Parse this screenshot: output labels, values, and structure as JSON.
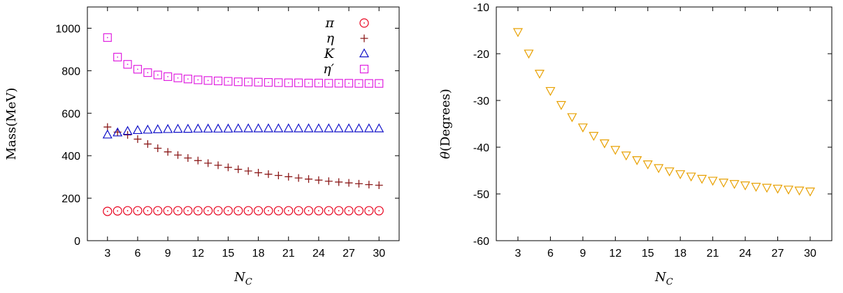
{
  "chart_data": [
    {
      "type": "scatter",
      "xlabel": "N_C",
      "ylabel": "Mass(MeV)",
      "xlim": [
        1,
        32
      ],
      "ylim": [
        0,
        1100
      ],
      "xticks": [
        3,
        6,
        9,
        12,
        15,
        18,
        21,
        24,
        27,
        30
      ],
      "yticks": [
        0,
        200,
        400,
        600,
        800,
        1000
      ],
      "legend_position": "top-right",
      "x": [
        3,
        4,
        5,
        6,
        7,
        8,
        9,
        10,
        11,
        12,
        13,
        14,
        15,
        16,
        17,
        18,
        19,
        20,
        21,
        22,
        23,
        24,
        25,
        26,
        27,
        28,
        29,
        30
      ],
      "series": [
        {
          "name": "π",
          "marker": "circle",
          "color": "#e8001c",
          "values": [
            138,
            140,
            141,
            141,
            141,
            141,
            141,
            141,
            141,
            141,
            141,
            141,
            141,
            141,
            141,
            141,
            141,
            141,
            141,
            141,
            141,
            141,
            141,
            141,
            141,
            141,
            141,
            141
          ]
        },
        {
          "name": "η",
          "marker": "plus",
          "color": "#8b1a1a",
          "values": [
            535,
            511,
            498,
            478,
            455,
            435,
            418,
            403,
            389,
            377,
            365,
            355,
            345,
            336,
            328,
            320,
            313,
            307,
            301,
            295,
            290,
            285,
            280,
            276,
            272,
            268,
            264,
            261
          ]
        },
        {
          "name": "K",
          "marker": "triangle-up",
          "color": "#1010c8",
          "values": [
            498,
            508,
            515,
            519,
            521,
            523,
            524,
            525,
            525,
            526,
            526,
            526,
            526,
            527,
            527,
            527,
            527,
            527,
            527,
            527,
            527,
            527,
            527,
            527,
            527,
            527,
            527,
            527
          ]
        },
        {
          "name": "η′",
          "marker": "square",
          "color": "#e020e0",
          "values": [
            956,
            864,
            830,
            807,
            791,
            780,
            772,
            766,
            761,
            757,
            754,
            752,
            750,
            748,
            747,
            746,
            745,
            744,
            743,
            743,
            742,
            742,
            741,
            741,
            741,
            740,
            740,
            740
          ]
        }
      ]
    },
    {
      "type": "scatter",
      "xlabel": "N_C",
      "ylabel": "θ(Degrees)",
      "xlim": [
        1,
        32
      ],
      "ylim": [
        -60,
        -10
      ],
      "xticks": [
        3,
        6,
        9,
        12,
        15,
        18,
        21,
        24,
        27,
        30
      ],
      "yticks": [
        -60,
        -50,
        -40,
        -30,
        -20,
        -10
      ],
      "x": [
        3,
        4,
        5,
        6,
        7,
        8,
        9,
        10,
        11,
        12,
        13,
        14,
        15,
        16,
        17,
        18,
        19,
        20,
        21,
        22,
        23,
        24,
        25,
        26,
        27,
        28,
        29,
        30
      ],
      "series": [
        {
          "marker": "triangle-down",
          "color": "#e8a000",
          "values": [
            -15.3,
            -19.9,
            -24.2,
            -27.9,
            -30.9,
            -33.5,
            -35.7,
            -37.5,
            -39.1,
            -40.5,
            -41.7,
            -42.7,
            -43.6,
            -44.4,
            -45.1,
            -45.7,
            -46.2,
            -46.7,
            -47.1,
            -47.5,
            -47.8,
            -48.1,
            -48.4,
            -48.6,
            -48.8,
            -49.0,
            -49.2,
            -49.4
          ]
        }
      ]
    }
  ]
}
